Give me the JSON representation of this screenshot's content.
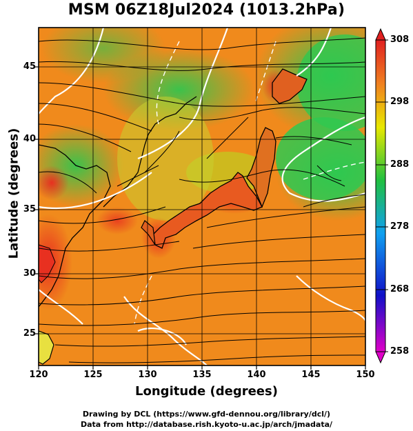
{
  "title": "MSM 06Z18Jul2024 (1013.2hPa)",
  "xlabel": "Longitude (degrees)",
  "ylabel": "Latitude  (degrees)",
  "x_ticks": [
    "120",
    "125",
    "130",
    "135",
    "140",
    "145",
    "150"
  ],
  "y_ticks": [
    "25",
    "30",
    "35",
    "40",
    "45"
  ],
  "colorbar": {
    "ticks": [
      "258",
      "268",
      "278",
      "288",
      "298",
      "308"
    ],
    "min": 258,
    "max": 308,
    "colors": [
      "#e000c8",
      "#1010c8",
      "#10a0f0",
      "#20c040",
      "#e8e800",
      "#f08020",
      "#e02020"
    ]
  },
  "credits": {
    "line1": "Drawing by DCL (https://www.gfd-dennou.org/library/dcl/)",
    "line2": "Data from http://database.rish.kyoto-u.ac.jp/arch/jmadata/"
  },
  "map": {
    "lon_range": [
      120,
      150
    ],
    "lat_range": [
      22.5,
      48
    ],
    "contour_color": "#ffffff",
    "streamline_color": "#000000"
  }
}
